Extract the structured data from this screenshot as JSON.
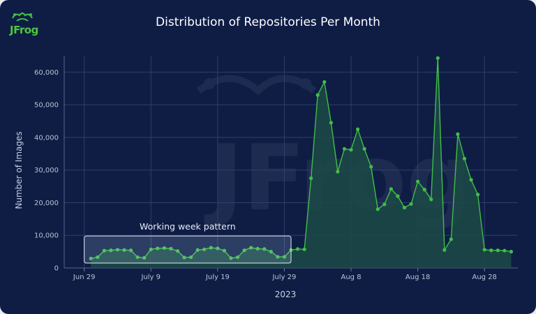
{
  "brand": {
    "name": "JFrog",
    "accent": "#40be46"
  },
  "chart_data": {
    "type": "area",
    "title": "Distribution of Repositories Per Month",
    "xlabel": "2023",
    "ylabel": "Number of Images",
    "ylim": [
      0,
      65000
    ],
    "yticks": [
      0,
      10000,
      20000,
      30000,
      40000,
      50000,
      60000
    ],
    "ytick_labels": [
      "0",
      "10,000",
      "20,000",
      "30,000",
      "40,000",
      "50,000",
      "60,000"
    ],
    "xlim_day": [
      -3,
      65
    ],
    "xtick_days": [
      0,
      10,
      20,
      30,
      40,
      50,
      60
    ],
    "xtick_labels": [
      "Jun 29",
      "July 9",
      "July 19",
      "July 29",
      "Aug 8",
      "Aug 18",
      "Aug 28"
    ],
    "grid": true,
    "series": [
      {
        "color": "#40be46",
        "fill": "#1c4a47",
        "x": [
          1,
          2,
          3,
          4,
          5,
          6,
          7,
          8,
          9,
          10,
          11,
          12,
          13,
          14,
          15,
          16,
          17,
          18,
          19,
          20,
          21,
          22,
          23,
          24,
          25,
          26,
          27,
          28,
          29,
          30,
          31,
          32,
          33,
          34,
          35,
          36,
          37,
          38,
          39,
          40,
          41,
          42,
          43,
          44,
          45,
          46,
          47,
          48,
          49,
          50,
          51,
          52,
          53,
          54,
          55,
          56,
          57,
          58,
          59,
          60,
          61,
          62,
          63,
          64
        ],
        "values": [
          2900,
          3300,
          5300,
          5400,
          5600,
          5500,
          5400,
          3300,
          3100,
          5700,
          6000,
          6100,
          5900,
          5200,
          3200,
          3300,
          5500,
          5700,
          6200,
          6000,
          5300,
          3000,
          3300,
          5400,
          6200,
          5900,
          5800,
          5000,
          3400,
          3400,
          5500,
          5800,
          5700,
          27500,
          53000,
          57000,
          44500,
          29500,
          36500,
          36200,
          42500,
          36500,
          31000,
          18000,
          19500,
          24200,
          22000,
          18500,
          19600,
          26500,
          24000,
          21000,
          64300,
          5500,
          8800,
          41000,
          33500,
          27000,
          22500,
          5600,
          5400,
          5400,
          5300,
          5000
        ]
      }
    ],
    "annotations": [
      {
        "text": "Working week pattern",
        "x_range": [
          0,
          31
        ],
        "y_range": [
          1500,
          9800
        ]
      }
    ]
  }
}
